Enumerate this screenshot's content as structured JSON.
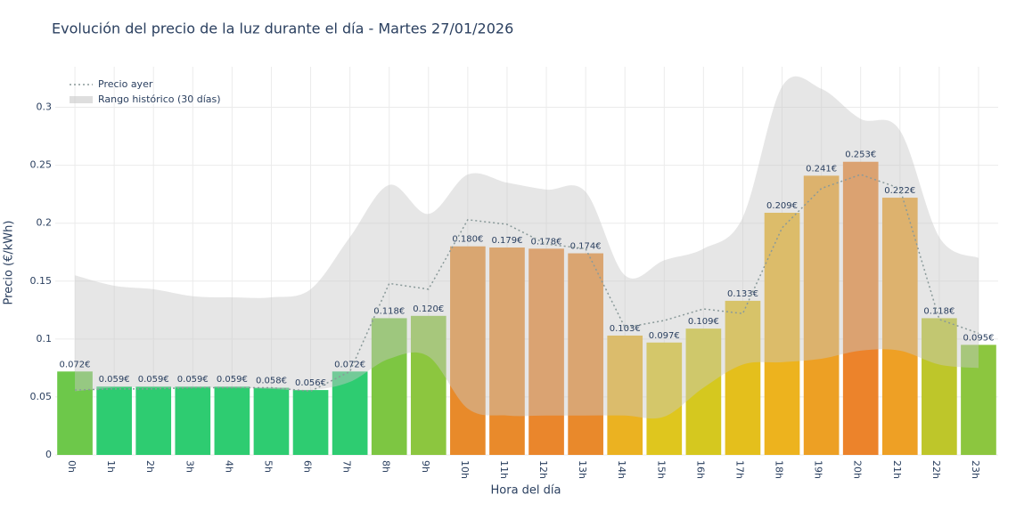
{
  "chart_data": {
    "type": "bar",
    "title": "Evolución del precio de la luz durante el día - Martes 27/01/2026",
    "x_label": "Hora del día",
    "y_label": "Precio (€/kWh)",
    "categories": [
      "0h",
      "1h",
      "2h",
      "3h",
      "4h",
      "5h",
      "6h",
      "7h",
      "8h",
      "9h",
      "10h",
      "11h",
      "12h",
      "13h",
      "14h",
      "15h",
      "16h",
      "17h",
      "18h",
      "19h",
      "20h",
      "21h",
      "22h",
      "23h"
    ],
    "values": [
      0.072,
      0.059,
      0.059,
      0.059,
      0.059,
      0.058,
      0.056,
      0.072,
      0.118,
      0.12,
      0.18,
      0.179,
      0.178,
      0.174,
      0.103,
      0.097,
      0.109,
      0.133,
      0.209,
      0.241,
      0.253,
      0.222,
      0.118,
      0.095
    ],
    "value_labels": [
      "0.072€",
      "0.059€",
      "0.059€",
      "0.059€",
      "0.059€",
      "0.058€",
      "0.056€",
      "0.072€",
      "0.118€",
      "0.120€",
      "0.180€",
      "0.179€",
      "0.178€",
      "0.174€",
      "0.103€",
      "0.097€",
      "0.109€",
      "0.133€",
      "0.209€",
      "0.241€",
      "0.253€",
      "0.222€",
      "0.118€",
      "0.095€"
    ],
    "colors": [
      "#6dc84a",
      "#2ecc71",
      "#2ecc71",
      "#2ecc71",
      "#2ecc71",
      "#2ecc71",
      "#2ecc71",
      "#2ecc71",
      "#7dc642",
      "#8cc63f",
      "#e88a2a",
      "#e98a2b",
      "#ea862c",
      "#e9892b",
      "#ebb221",
      "#dfc61e",
      "#d5c81f",
      "#e4bf1c",
      "#edb31e",
      "#eda024",
      "#ec832b",
      "#eea025",
      "#bec62a",
      "#8cc63f"
    ],
    "lines": [
      {
        "name": "Precio ayer",
        "color": "#8a9a9a",
        "values": [
          0.056,
          0.057,
          0.057,
          0.058,
          0.058,
          0.058,
          0.055,
          0.072,
          0.148,
          0.143,
          0.203,
          0.199,
          0.182,
          0.178,
          0.11,
          0.116,
          0.126,
          0.122,
          0.196,
          0.23,
          0.242,
          0.23,
          0.117,
          0.105
        ]
      }
    ],
    "band": {
      "name": "Rango histórico (30 días)",
      "color": "#c8c8c8",
      "upper": [
        0.155,
        0.146,
        0.143,
        0.137,
        0.136,
        0.136,
        0.143,
        0.188,
        0.233,
        0.208,
        0.242,
        0.235,
        0.229,
        0.227,
        0.155,
        0.168,
        0.178,
        0.205,
        0.318,
        0.316,
        0.29,
        0.28,
        0.188,
        0.17
      ],
      "lower": [
        0.055,
        0.058,
        0.058,
        0.058,
        0.058,
        0.057,
        0.056,
        0.063,
        0.083,
        0.085,
        0.04,
        0.034,
        0.034,
        0.034,
        0.034,
        0.033,
        0.058,
        0.078,
        0.08,
        0.083,
        0.09,
        0.09,
        0.078,
        0.075
      ]
    },
    "ylim": [
      0,
      0.335
    ],
    "yticks": [
      0,
      0.05,
      0.1,
      0.15,
      0.2,
      0.25,
      0.3
    ],
    "grid": true
  }
}
